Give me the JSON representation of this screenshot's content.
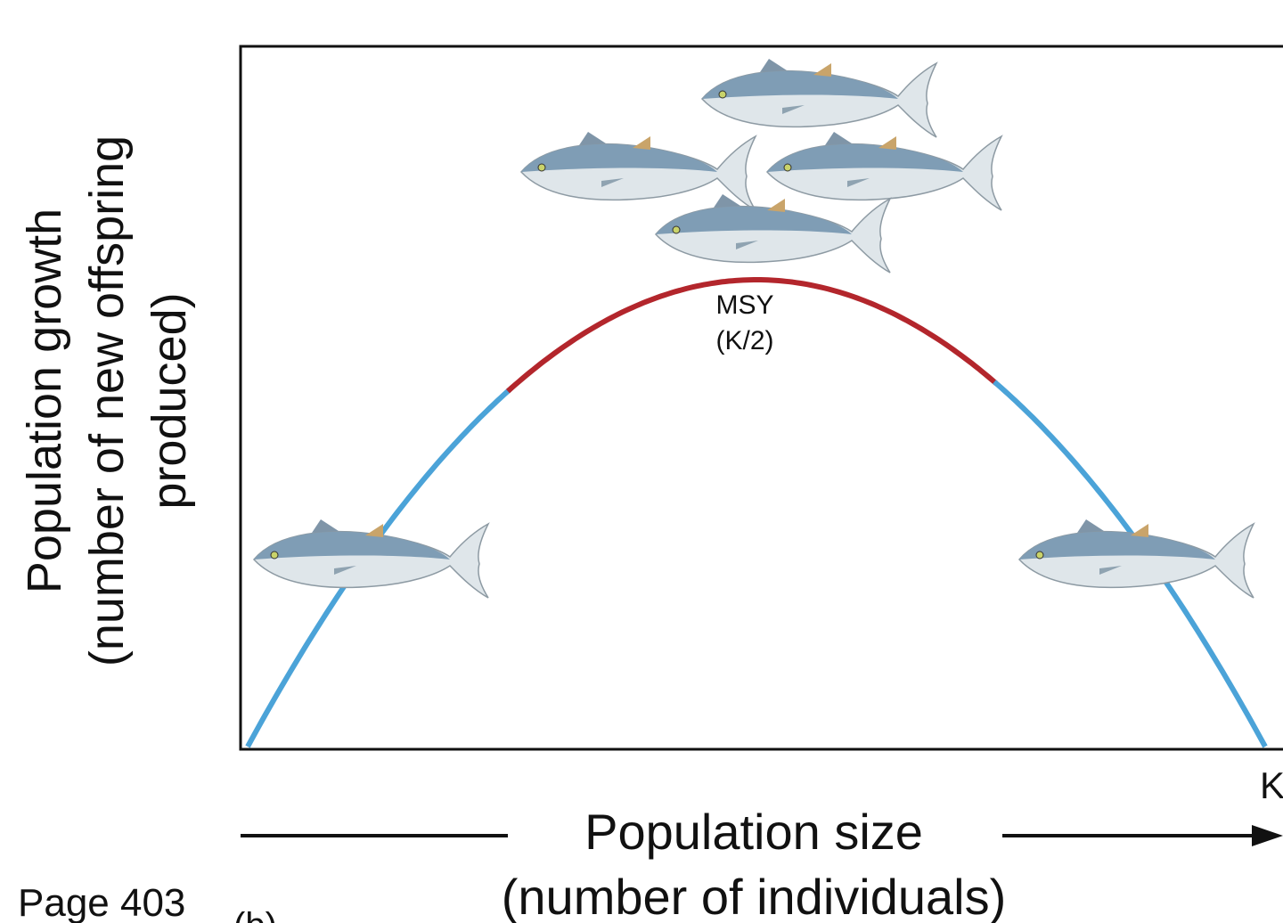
{
  "y_axis_label": [
    "Population growth",
    "(number of new offspring",
    "produced)"
  ],
  "annotation": {
    "line1": "MSY",
    "line2": "(K/2)"
  },
  "x_end_label": "K",
  "x_axis_label": [
    "Population size",
    "(number of individuals)"
  ],
  "page": "Page 403",
  "panel": "(b)"
}
